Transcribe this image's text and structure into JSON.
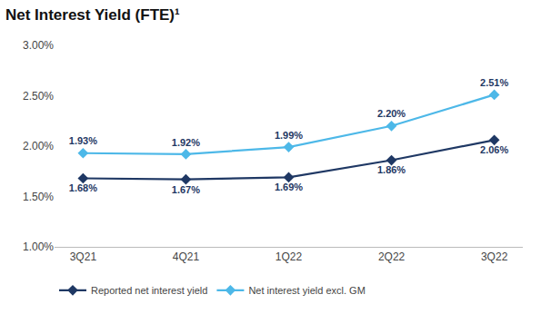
{
  "chart_data": {
    "type": "line",
    "title": "Net Interest Yield (FTE)¹",
    "categories": [
      "3Q21",
      "4Q21",
      "1Q22",
      "2Q22",
      "3Q22"
    ],
    "series": [
      {
        "name": "Reported net interest yield",
        "color": "#1f3864",
        "marker": "diamond",
        "values": [
          1.68,
          1.67,
          1.69,
          1.86,
          2.06
        ],
        "value_labels": [
          "1.68%",
          "1.67%",
          "1.69%",
          "1.86%",
          "2.06%"
        ]
      },
      {
        "name": "Net interest yield excl. GM",
        "color": "#4db8e8",
        "marker": "diamond",
        "values": [
          1.93,
          1.92,
          1.99,
          2.2,
          2.51
        ],
        "value_labels": [
          "1.93%",
          "1.92%",
          "1.99%",
          "2.20%",
          "2.51%"
        ]
      }
    ],
    "ylim": [
      1.0,
      3.0
    ],
    "yticks": [
      {
        "value": 1.0,
        "label": "1.00%"
      },
      {
        "value": 1.5,
        "label": "1.50%"
      },
      {
        "value": 2.0,
        "label": "2.00%"
      },
      {
        "value": 2.5,
        "label": "2.50%"
      },
      {
        "value": 3.0,
        "label": "3.00%"
      }
    ],
    "grid": false,
    "legend": "bottom",
    "data_labels": true
  }
}
